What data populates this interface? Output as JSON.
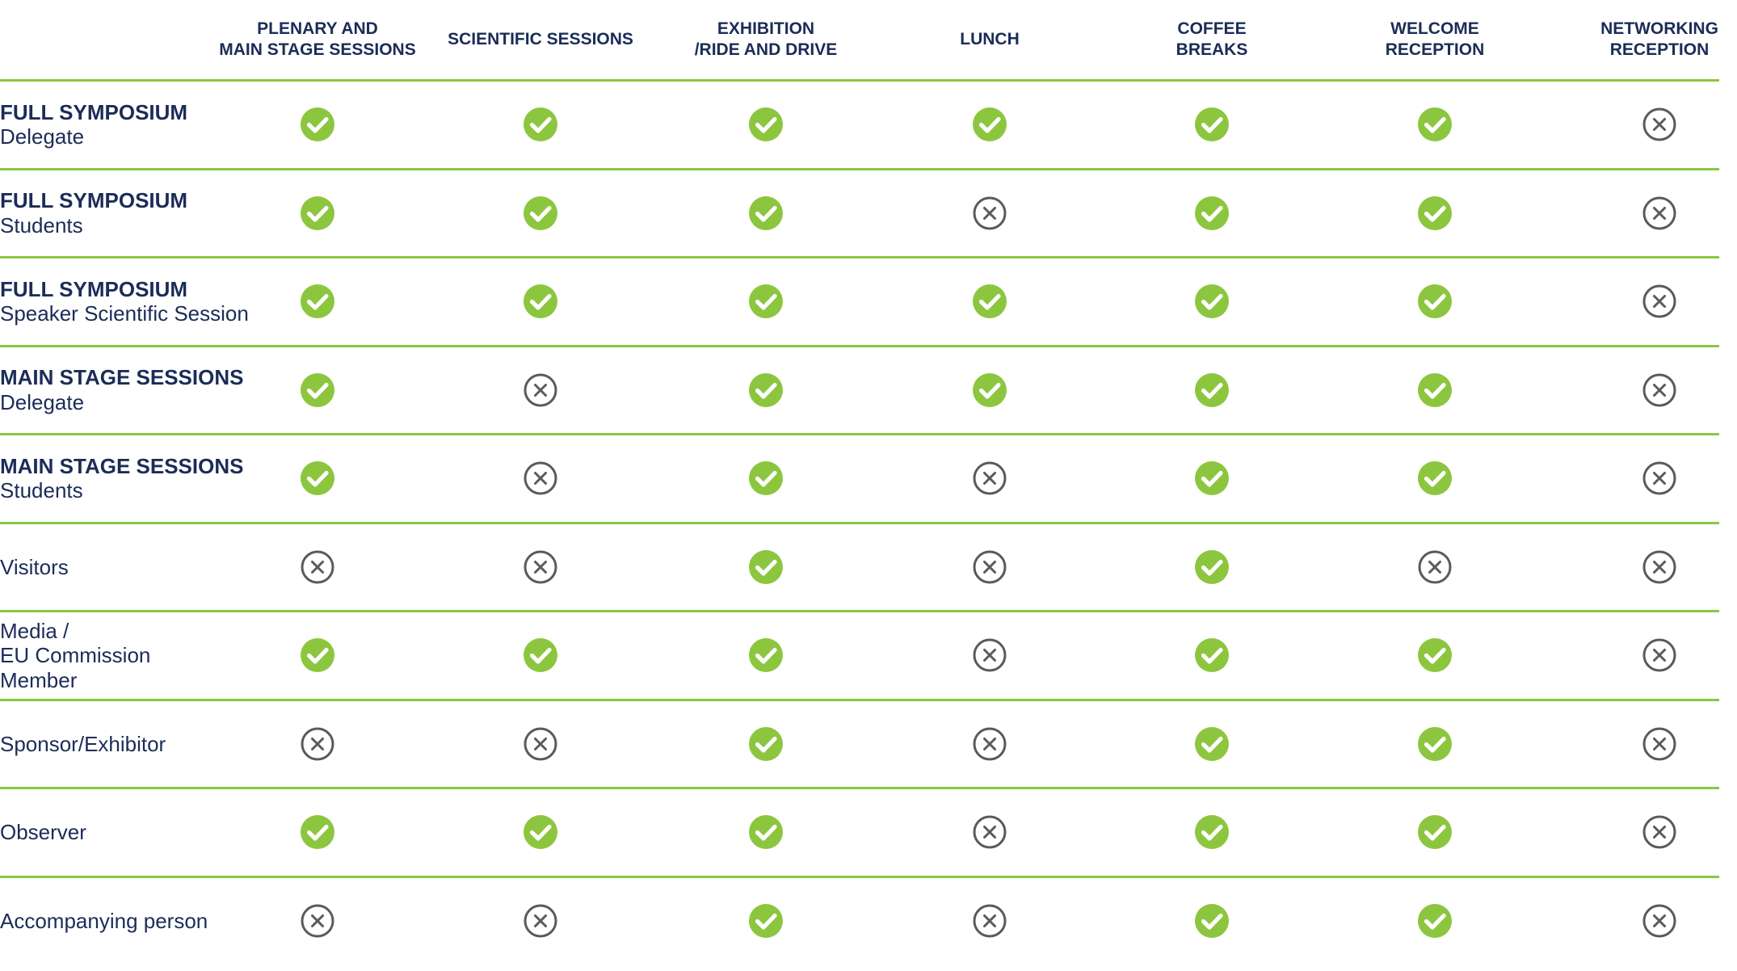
{
  "colors": {
    "check": "#8cc63f",
    "cross": "#5a5a5a",
    "text": "#1b2c57",
    "rule": "#8cc63f"
  },
  "columns": [
    "PLENARY AND\nMAIN STAGE SESSIONS",
    "SCIENTIFIC SESSIONS",
    "EXHIBITION\n/RIDE AND DRIVE",
    "LUNCH",
    "COFFEE\nBREAKS",
    "WELCOME\nRECEPTION",
    "NETWORKING\nRECEPTION"
  ],
  "rows": [
    {
      "title": "FULL SYMPOSIUM",
      "subtitle": "Delegate",
      "access": [
        "yes",
        "yes",
        "yes",
        "yes",
        "yes",
        "yes",
        "no"
      ]
    },
    {
      "title": "FULL SYMPOSIUM",
      "subtitle": "Students",
      "access": [
        "yes",
        "yes",
        "yes",
        "no",
        "yes",
        "yes",
        "no"
      ]
    },
    {
      "title": "FULL SYMPOSIUM",
      "subtitle": "Speaker Scientific Session",
      "access": [
        "yes",
        "yes",
        "yes",
        "yes",
        "yes",
        "yes",
        "no"
      ]
    },
    {
      "title": "MAIN STAGE SESSIONS",
      "subtitle": "Delegate",
      "access": [
        "yes",
        "no",
        "yes",
        "yes",
        "yes",
        "yes",
        "no"
      ]
    },
    {
      "title": "MAIN STAGE SESSIONS",
      "subtitle": "Students",
      "access": [
        "yes",
        "no",
        "yes",
        "no",
        "yes",
        "yes",
        "no"
      ]
    },
    {
      "title": "",
      "subtitle": "Visitors",
      "access": [
        "no",
        "no",
        "yes",
        "no",
        "yes",
        "no",
        "no"
      ]
    },
    {
      "title": "",
      "subtitle": "Media /\nEU Commission\nMember",
      "access": [
        "yes",
        "yes",
        "yes",
        "no",
        "yes",
        "yes",
        "no"
      ]
    },
    {
      "title": "",
      "subtitle": "Sponsor/Exhibitor",
      "access": [
        "no",
        "no",
        "yes",
        "no",
        "yes",
        "yes",
        "no"
      ]
    },
    {
      "title": "",
      "subtitle": "Observer",
      "access": [
        "yes",
        "yes",
        "yes",
        "no",
        "yes",
        "yes",
        "no"
      ]
    },
    {
      "title": "",
      "subtitle": "Accompanying person",
      "access": [
        "no",
        "no",
        "yes",
        "no",
        "yes",
        "yes",
        "no"
      ]
    }
  ]
}
